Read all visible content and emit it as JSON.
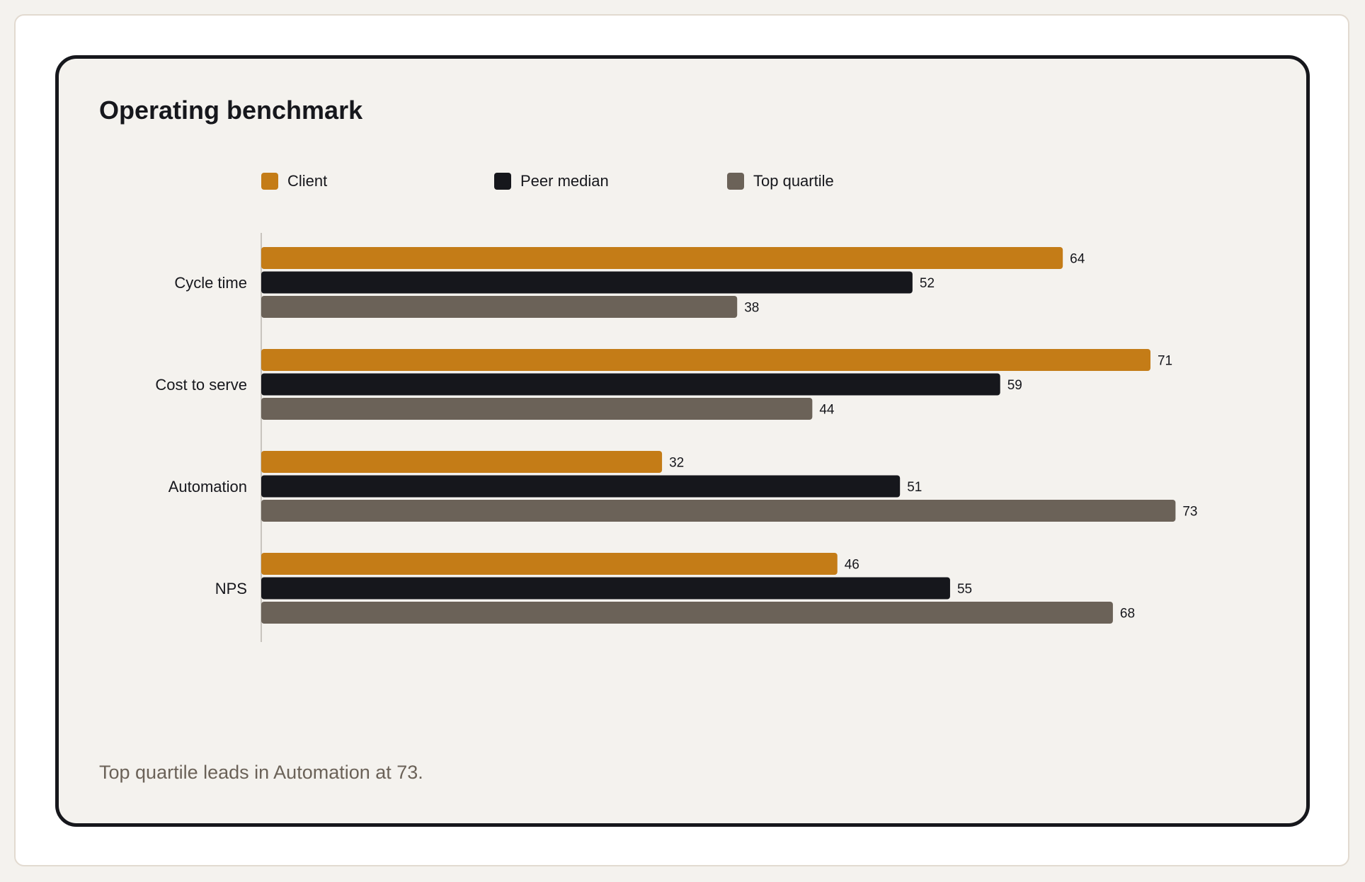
{
  "title": "Operating benchmark",
  "footnote": "Top quartile leads in Automation at 73.",
  "colors": {
    "client": "#c47c17",
    "peer_median": "#16171c",
    "top_quartile": "#6b6258",
    "axis": "#c8c4be",
    "text": "#16171c"
  },
  "chart_data": {
    "type": "bar",
    "orientation": "horizontal",
    "categories": [
      "Cycle time",
      "Cost to serve",
      "Automation",
      "NPS"
    ],
    "series": [
      {
        "name": "Client",
        "color": "#c47c17",
        "values": [
          64,
          71,
          32,
          46
        ]
      },
      {
        "name": "Peer median",
        "color": "#16171c",
        "values": [
          52,
          59,
          51,
          55
        ]
      },
      {
        "name": "Top quartile",
        "color": "#6b6258",
        "values": [
          38,
          44,
          73,
          68
        ]
      }
    ],
    "xlim": [
      0,
      100
    ],
    "grid": false,
    "legend": "top",
    "data_labels": true
  }
}
